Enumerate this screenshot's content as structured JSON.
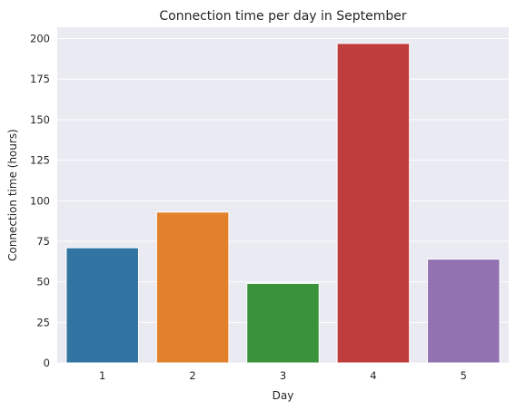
{
  "chart_data": {
    "type": "bar",
    "title": "Connection time per day in September",
    "xlabel": "Day",
    "ylabel": "Connection time (hours)",
    "categories": [
      "1",
      "2",
      "3",
      "4",
      "5"
    ],
    "values": [
      71,
      93,
      49,
      197,
      64
    ],
    "ylim": [
      0,
      207
    ],
    "yticks": [
      0,
      25,
      50,
      75,
      100,
      125,
      150,
      175,
      200
    ],
    "grid": true,
    "colors": [
      "#3274a1",
      "#e1812c",
      "#3a923a",
      "#c03d3e",
      "#9372b2"
    ],
    "background": "#eaeaf2",
    "gridColor": "#ffffff"
  }
}
